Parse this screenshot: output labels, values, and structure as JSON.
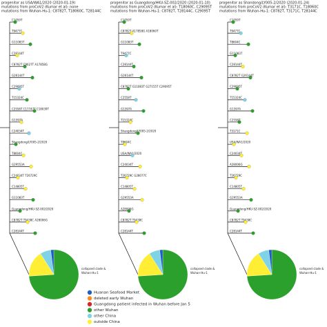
{
  "panels": [
    {
      "header": [
        "progenitor as USA/WA1/2020 (2020-01-19)",
        "mutations from proCoV2 (Kumar et al): none",
        "mutations from Wuhan-Hu-1: C8782T, T18060C, T28144C"
      ],
      "branches": [
        {
          "label": "C1059T",
          "color": "#2ca02c"
        },
        {
          "label": "T9477C",
          "color": "#ffee33"
        },
        {
          "label": "G11083T",
          "color": "#2ca02c"
        },
        {
          "label": "C28144T",
          "color": "#ffee33"
        },
        {
          "label": "C8782T C9627T A17858G",
          "color": "#2ca02c"
        },
        {
          "label": "G26144T",
          "color": "#2ca02c"
        },
        {
          "label": "C29095T",
          "color": "#7fd3e6"
        },
        {
          "label": "T15324C",
          "color": "#2ca02c"
        },
        {
          "label": "C2558T C17747T C18039T",
          "color": "#2ca02c"
        },
        {
          "label": "G1397A",
          "color": "#ffee33"
        },
        {
          "label": "C24034T",
          "color": "#7fd3e6"
        },
        {
          "label": "Shangdong/LY005-2/2020",
          "color": "#2ca02c"
        },
        {
          "label": "T8604C",
          "color": "#ffee33"
        },
        {
          "label": "G29553A",
          "color": "#ffee33"
        },
        {
          "label": "C24034T T26729C",
          "color": "#ffee33"
        },
        {
          "label": "C14805T",
          "color": "#ffee33"
        },
        {
          "label": "G11083T",
          "color": "#2ca02c"
        },
        {
          "label": "Guangdong/HKU-SZ-002/2020",
          "color": "#2ca02c"
        },
        {
          "label": "C8782T T9438C A28006G",
          "color": "#ffee33"
        },
        {
          "label": "C28144T",
          "color": "#2ca02c"
        }
      ],
      "pie": [
        {
          "color": "#2ca02c",
          "value": 74
        },
        {
          "color": "#ffee33",
          "value": 17
        },
        {
          "color": "#7fd3e6",
          "value": 7
        },
        {
          "color": "#1f5fc0",
          "value": 2
        }
      ],
      "pie_label": [
        "collapsed clade &",
        "Wuhan-Hu-1"
      ]
    },
    {
      "header": [
        "progenitor as Guangdong/HKU-SZ-002/2020 (2020-01-10)",
        "mutations from proCoV2 (Kumar et al): T18060C, C29095T",
        "mutations from Wuhan-Hu-1: C8782T, T28144C, C29095T"
      ],
      "branches": [
        {
          "label": "C1059T",
          "color": "#2ca02c"
        },
        {
          "label": "C8782T A17858G A18060T",
          "color": "#ffee33"
        },
        {
          "label": "G11083T",
          "color": "#2ca02c"
        },
        {
          "label": "T9477C",
          "color": "#7fd3e6"
        },
        {
          "label": "C28144T",
          "color": "#2ca02c"
        },
        {
          "label": "G26144T",
          "color": "#2ca02c"
        },
        {
          "label": "C8782T G11083T G27155T C29095T",
          "color": "#2ca02c"
        },
        {
          "label": "C2558T",
          "color": "#7fd3e6"
        },
        {
          "label": "G1397A",
          "color": "#2ca02c"
        },
        {
          "label": "T15324C",
          "color": "#ffee33"
        },
        {
          "label": "Shangdong/LY005-2/2020",
          "color": "#2ca02c"
        },
        {
          "label": "T8604C",
          "color": "#ffee33"
        },
        {
          "label": "USA/WA1/2020",
          "color": "#7fd3e6"
        },
        {
          "label": "C24034T",
          "color": "#ffee33"
        },
        {
          "label": "T26729C G28077C",
          "color": "#ffee33"
        },
        {
          "label": "C14805T",
          "color": "#ffee33"
        },
        {
          "label": "G29553A",
          "color": "#ffee33"
        },
        {
          "label": "A28006G",
          "color": "#2ca02c"
        },
        {
          "label": "C8782T T9438C",
          "color": "#ffee33"
        },
        {
          "label": "C28144T",
          "color": "#2ca02c"
        }
      ],
      "pie": [
        {
          "color": "#2ca02c",
          "value": 74
        },
        {
          "color": "#ffee33",
          "value": 17
        },
        {
          "color": "#7fd3e6",
          "value": 7
        },
        {
          "color": "#1f5fc0",
          "value": 2
        }
      ],
      "pie_label": [
        "collapsed clade &",
        "Wuhan-Hu-1"
      ]
    },
    {
      "header": [
        "progenitor as Shandong/LY005-2/2020 (2020-01-24)",
        "mutations from proCoV2 (Kumar et al): T3171C, T18060C",
        "mutations from Wuhan-Hu-1: C8782T, T3171C, T28144C"
      ],
      "branches": [
        {
          "label": "C1059T",
          "color": "#2ca02c"
        },
        {
          "label": "T9477C",
          "color": "#7fd3e6"
        },
        {
          "label": "T8604C",
          "color": "#2ca02c"
        },
        {
          "label": "G11083T",
          "color": "#2ca02c"
        },
        {
          "label": "C28144T",
          "color": "#ffee33"
        },
        {
          "label": "C8782T G26144T",
          "color": "#2ca02c"
        },
        {
          "label": "C29095T",
          "color": "#2ca02c"
        },
        {
          "label": "T15324C",
          "color": "#7fd3e6"
        },
        {
          "label": "G1397A",
          "color": "#2ca02c"
        },
        {
          "label": "C2558T",
          "color": "#2ca02c"
        },
        {
          "label": "T3171C",
          "color": "#ffee33"
        },
        {
          "label": "USA/WA1/2020",
          "color": "#ffee33"
        },
        {
          "label": "C24034T",
          "color": "#ffee33"
        },
        {
          "label": "A28006G",
          "color": "#ffee33"
        },
        {
          "label": "T26729C",
          "color": "#ffee33"
        },
        {
          "label": "C14805T",
          "color": "#ffee33"
        },
        {
          "label": "G29553A",
          "color": "#2ca02c"
        },
        {
          "label": "Guangdong/HKU-SZ-002/2020",
          "color": "#2ca02c"
        },
        {
          "label": "C8782T T9438C",
          "color": "#ffee33"
        },
        {
          "label": "C28144T",
          "color": "#2ca02c"
        }
      ],
      "pie": [
        {
          "color": "#2ca02c",
          "value": 74
        },
        {
          "color": "#ffee33",
          "value": 17
        },
        {
          "color": "#7fd3e6",
          "value": 7
        },
        {
          "color": "#1f5fc0",
          "value": 2
        }
      ],
      "pie_label": [
        "collapsed clade &",
        "Wuhan-Hu-1"
      ]
    }
  ],
  "legend": [
    {
      "name": "Huanan Seafood Market",
      "color": "#1f5fc0"
    },
    {
      "name": "deleted early Wuhan",
      "color": "#ff8c1a"
    },
    {
      "name": "Guangdong patient infected in Wuhan before Jan 5",
      "color": "#d62728"
    },
    {
      "name": "other Wuhan",
      "color": "#2ca02c"
    },
    {
      "name": "other China",
      "color": "#7fd3e6"
    },
    {
      "name": "outside China",
      "color": "#ffee33"
    }
  ]
}
